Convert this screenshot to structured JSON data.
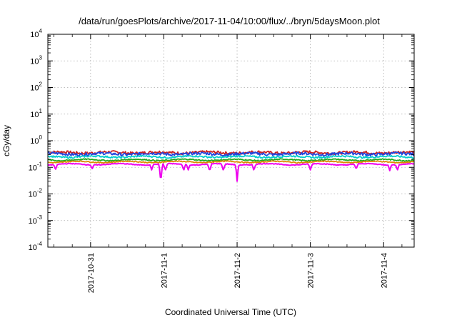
{
  "chart_data": {
    "type": "line",
    "title": "/data/run/goesPlots/archive/2017-11-04/10:00/flux/../bryn/5daysMoon.plot",
    "xlabel": "Coordinated Universal Time (UTC)",
    "ylabel": "cGy/day",
    "yscale": "log",
    "ylim": [
      0.0001,
      10000
    ],
    "y_ticks": [
      {
        "base": "10",
        "exp": "4"
      },
      {
        "base": "10",
        "exp": "3"
      },
      {
        "base": "10",
        "exp": "2"
      },
      {
        "base": "10",
        "exp": "1"
      },
      {
        "base": "10",
        "exp": "0"
      },
      {
        "base": "10",
        "exp": "-1"
      },
      {
        "base": "10",
        "exp": "-2"
      },
      {
        "base": "10",
        "exp": "-3"
      },
      {
        "base": "10",
        "exp": "-4"
      }
    ],
    "xlim": [
      "2017-10-30T10:00",
      "2017-11-04T10:00"
    ],
    "x_ticks": [
      "2017-10-31",
      "2017-11-1",
      "2017-11-2",
      "2017-11-3",
      "2017-11-4"
    ],
    "grid": true,
    "series": [
      {
        "color": "#cc2222",
        "level": 0.36,
        "dips": [],
        "amp": 0.12
      },
      {
        "color": "#2244dd",
        "level": 0.32,
        "dips": [],
        "amp": 0.12
      },
      {
        "color": "#00cccc",
        "level": 0.25,
        "dips": [],
        "amp": 0.07
      },
      {
        "color": "#22aa22",
        "level": 0.19,
        "dips": [],
        "amp": 0.05
      },
      {
        "color": "#dd8800",
        "level": 0.16,
        "dips": [],
        "amp": 0.04
      },
      {
        "color": "#ee00ee",
        "level": 0.13,
        "dips": [
          {
            "t": "2017-10-30T12:30",
            "v": 0.08
          },
          {
            "t": "2017-10-31T00:30",
            "v": 0.085
          },
          {
            "t": "2017-10-31T20:00",
            "v": 0.08
          },
          {
            "t": "2017-10-31T23:00",
            "v": 0.018
          },
          {
            "t": "2017-11-01T00:30",
            "v": 0.075
          },
          {
            "t": "2017-11-01T06:30",
            "v": 0.075
          },
          {
            "t": "2017-11-01T08:00",
            "v": 0.08
          },
          {
            "t": "2017-11-01T15:00",
            "v": 0.07
          },
          {
            "t": "2017-11-01T19:30",
            "v": 0.075
          },
          {
            "t": "2017-11-02T00:00",
            "v": 0.03
          },
          {
            "t": "2017-11-02T05:30",
            "v": 0.075
          },
          {
            "t": "2017-11-03T00:00",
            "v": 0.08
          },
          {
            "t": "2017-11-03T15:00",
            "v": 0.085
          },
          {
            "t": "2017-11-04T02:00",
            "v": 0.075
          },
          {
            "t": "2017-11-04T04:30",
            "v": 0.075
          }
        ],
        "amp": 0.03
      }
    ]
  }
}
